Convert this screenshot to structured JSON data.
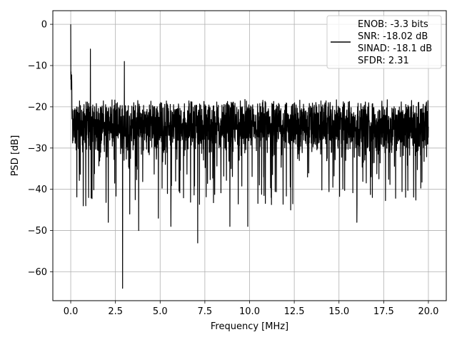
{
  "chart_data": {
    "type": "line",
    "xlabel": "Frequency [MHz]",
    "ylabel": "PSD [dB]",
    "xlim": [
      -1.0,
      21.0
    ],
    "ylim": [
      -67.0,
      3.3
    ],
    "xticks": [
      0.0,
      2.5,
      5.0,
      7.5,
      10.0,
      12.5,
      15.0,
      17.5,
      20.0
    ],
    "xtick_labels": [
      "0.0",
      "2.5",
      "5.0",
      "7.5",
      "10.0",
      "12.5",
      "15.0",
      "17.5",
      "20.0"
    ],
    "yticks": [
      0,
      -10,
      -20,
      -30,
      -40,
      -50,
      -60
    ],
    "ytick_labels": [
      "0",
      "−10",
      "−20",
      "−30",
      "−40",
      "−50",
      "−60"
    ],
    "grid": true,
    "legend_position": "top-right",
    "line_color": "#000000",
    "series": [
      {
        "legend_lines": [
          "ENOB: -3.3 bits",
          "SNR: -18.02 dB",
          "SINAD: -18.1 dB",
          "SFDR: 2.31"
        ],
        "noise_floor_db": -23,
        "x_range": [
          0.0,
          20.0
        ],
        "peaks": [
          {
            "x": 0.0,
            "y": 0.0
          },
          {
            "x": 1.1,
            "y": -6.0
          },
          {
            "x": 3.0,
            "y": -9.0
          }
        ],
        "dips": [
          {
            "x": 0.7,
            "y": -44.0
          },
          {
            "x": 1.0,
            "y": -42.0
          },
          {
            "x": 2.1,
            "y": -48.0
          },
          {
            "x": 2.9,
            "y": -64.0
          },
          {
            "x": 3.3,
            "y": -46.0
          },
          {
            "x": 3.8,
            "y": -50.0
          },
          {
            "x": 4.9,
            "y": -47.0
          },
          {
            "x": 5.6,
            "y": -49.0
          },
          {
            "x": 7.1,
            "y": -53.0
          },
          {
            "x": 7.8,
            "y": -48.0
          },
          {
            "x": 8.9,
            "y": -49.0
          },
          {
            "x": 9.9,
            "y": -49.0
          },
          {
            "x": 12.3,
            "y": -45.0
          },
          {
            "x": 16.0,
            "y": -48.0
          },
          {
            "x": 17.6,
            "y": -43.0
          }
        ]
      }
    ]
  }
}
